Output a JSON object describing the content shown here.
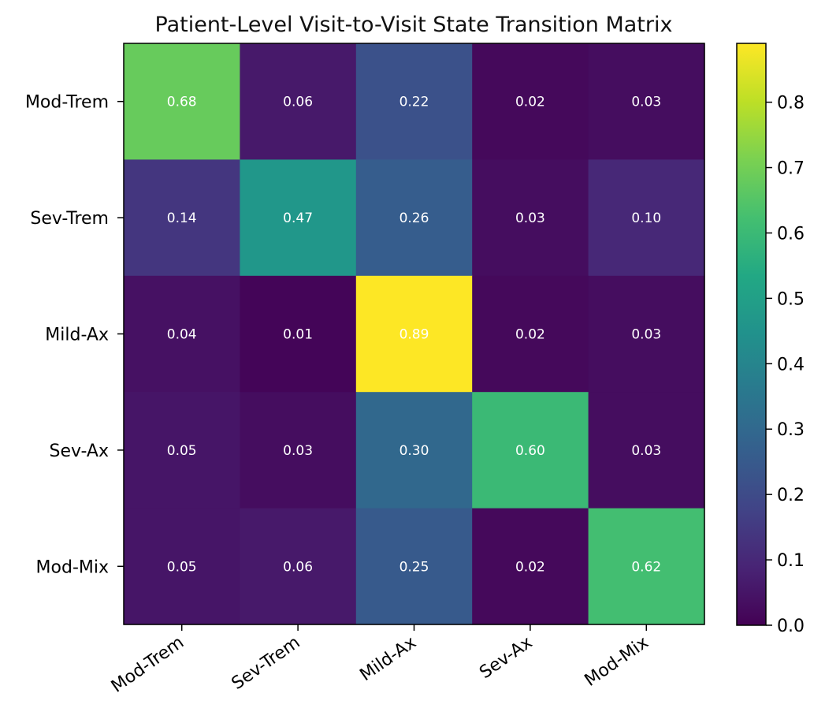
{
  "chart_data": {
    "type": "heatmap",
    "title": "Patient-Level Visit-to-Visit State Transition Matrix",
    "xlabel": "",
    "ylabel": "",
    "row_labels": [
      "Mod-Trem",
      "Sev-Trem",
      "Mild-Ax",
      "Sev-Ax",
      "Mod-Mix"
    ],
    "col_labels": [
      "Mod-Trem",
      "Sev-Trem",
      "Mild-Ax",
      "Sev-Ax",
      "Mod-Mix"
    ],
    "values": [
      [
        0.68,
        0.06,
        0.22,
        0.02,
        0.03
      ],
      [
        0.14,
        0.47,
        0.26,
        0.03,
        0.1
      ],
      [
        0.04,
        0.01,
        0.89,
        0.02,
        0.03
      ],
      [
        0.05,
        0.03,
        0.3,
        0.6,
        0.03
      ],
      [
        0.05,
        0.06,
        0.25,
        0.02,
        0.62
      ]
    ],
    "colormap": "viridis",
    "color_range": [
      0.0,
      0.89
    ],
    "colorbar_ticks": [
      "0.0",
      "0.1",
      "0.2",
      "0.3",
      "0.4",
      "0.5",
      "0.6",
      "0.7",
      "0.8"
    ],
    "cell_label_color": "#ffffff",
    "legend": "colorbar-right",
    "grid": false
  }
}
